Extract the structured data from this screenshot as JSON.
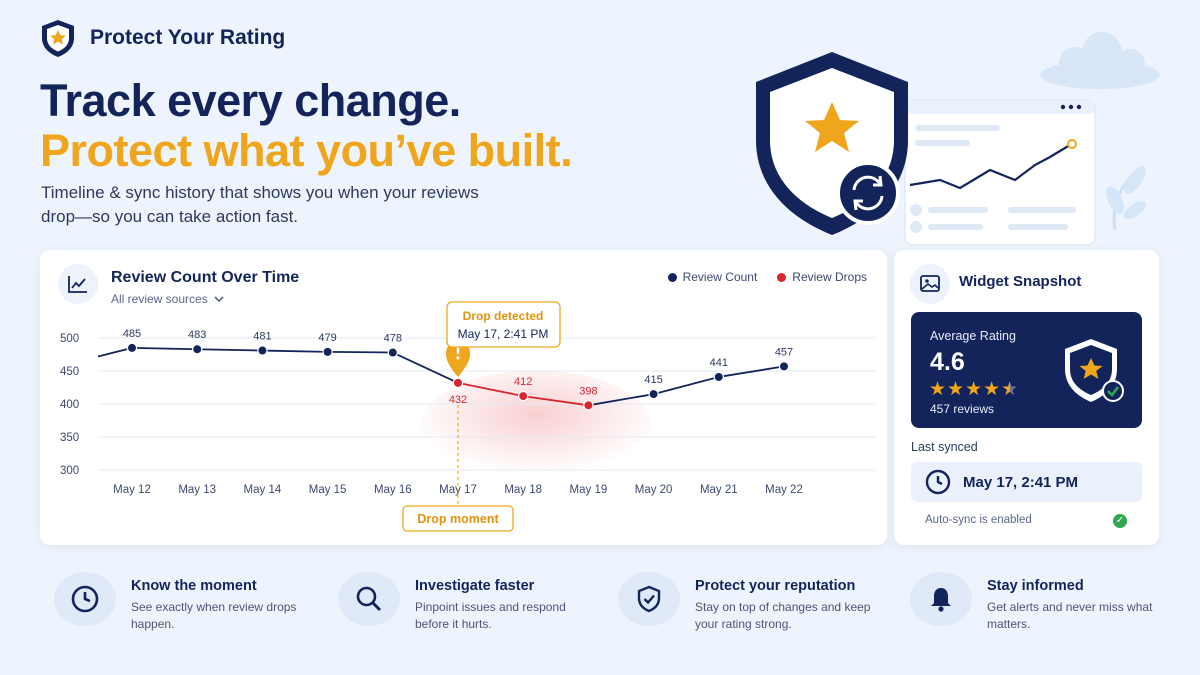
{
  "brand": {
    "name": "Protect Your Rating"
  },
  "hero": {
    "headline_1": "Track every change.",
    "headline_2": "Protect what you’ve built.",
    "subtitle": "Timeline & sync history that shows you when your reviews drop—so you can take action fast."
  },
  "colors": {
    "navy": "#13245b",
    "accent": "#f0a61c",
    "drop_red": "#d7262e",
    "success": "#2fa84f",
    "background": "#eef4fd"
  },
  "chart_card": {
    "title": "Review Count Over Time",
    "filter": "All review sources",
    "legend": [
      "Review Count",
      "Review Drops"
    ],
    "callout_title": "Drop detected",
    "callout_time": "May 17, 2:41 PM",
    "drop_moment": "Drop moment",
    "icons": {
      "header": "line-chart-icon",
      "filter": "chevron-down-icon",
      "alert": "alert-pin-icon"
    }
  },
  "chart_data": {
    "type": "line",
    "categories": [
      "May 12",
      "May 13",
      "May 14",
      "May 15",
      "May 16",
      "May 17",
      "May 18",
      "May 19",
      "May 20",
      "May 21",
      "May 22"
    ],
    "series": [
      {
        "name": "Review Count",
        "values": [
          485,
          483,
          481,
          479,
          478,
          null,
          null,
          null,
          415,
          441,
          457
        ]
      },
      {
        "name": "Review Drops",
        "values": [
          null,
          null,
          null,
          null,
          null,
          432,
          412,
          398,
          null,
          null,
          null
        ]
      }
    ],
    "all_values": [
      485,
      483,
      481,
      479,
      478,
      432,
      412,
      398,
      415,
      441,
      457
    ],
    "drop_indices": [
      5,
      6,
      7
    ],
    "y_ticks": [
      500,
      450,
      400,
      350,
      300
    ],
    "ylim": [
      300,
      500
    ],
    "grid": true,
    "legend_position": "top-right",
    "annotation": "Drop detected"
  },
  "widget": {
    "title": "Widget Snapshot",
    "rating_label": "Average Rating",
    "rating_value": "4.6",
    "rating_stars": 4.5,
    "review_count": "457 reviews",
    "last_synced_label": "Last synced",
    "last_synced_time": "May 17, 2:41 PM",
    "auto_sync": "Auto-sync is enabled",
    "icons": {
      "header": "image-icon",
      "clock": "clock-icon",
      "shield": "shield-star-icon",
      "check": "check-icon"
    }
  },
  "features": [
    {
      "title": "Know the moment",
      "desc": "See exactly when review drops happen.",
      "icon": "clock-icon"
    },
    {
      "title": "Investigate faster",
      "desc": "Pinpoint issues and respond before it hurts.",
      "icon": "search-icon"
    },
    {
      "title": "Protect your reputation",
      "desc": "Stay on top of changes and keep your rating strong.",
      "icon": "shield-check-icon"
    },
    {
      "title": "Stay informed",
      "desc": "Get alerts and never miss what matters.",
      "icon": "bell-icon"
    }
  ]
}
